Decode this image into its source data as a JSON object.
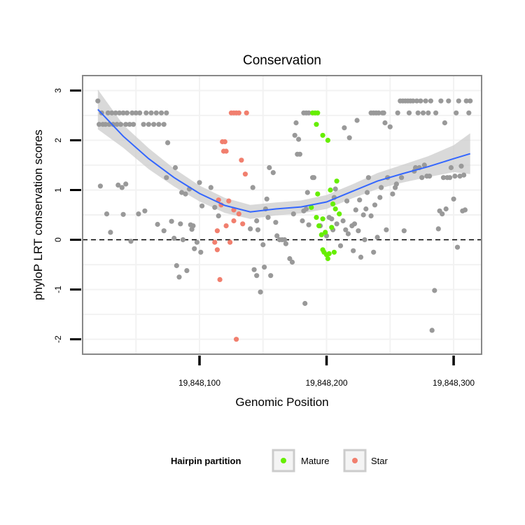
{
  "chart_data": {
    "type": "scatter",
    "title": "Conservation",
    "xlabel": "Genomic Position",
    "ylabel": "phyloP LRT conservation scores",
    "xlim": [
      19848008,
      19848322
    ],
    "ylim": [
      -2.3,
      3.3
    ],
    "x_ticks": [
      19848100,
      19848200,
      19848300
    ],
    "x_tick_labels": [
      "19,848,100",
      "19,848,200",
      "19,848,300"
    ],
    "y_ticks": [
      -2,
      -1,
      0,
      1,
      2,
      3
    ],
    "y_tick_labels": [
      "-2",
      "-1",
      "0",
      "1",
      "2",
      "3"
    ],
    "reference_line": {
      "y": 0,
      "style": "dashed",
      "color": "#000000"
    },
    "colors": {
      "other": "#999999",
      "mature": "#66ee00",
      "star": "#f17f6e",
      "smooth": "#3366ff",
      "band": "#cccccc",
      "panel_border": "#888888",
      "grid": "#f2f2f2"
    },
    "legend": {
      "title": "Hairpin partition",
      "position": "bottom",
      "entries": [
        {
          "label": "Mature",
          "color": "#66ee00"
        },
        {
          "label": "Star",
          "color": "#f17f6e"
        }
      ]
    },
    "smooth": {
      "x": [
        19848020,
        19848040,
        19848060,
        19848080,
        19848100,
        19848120,
        19848140,
        19848160,
        19848180,
        19848200,
        19848220,
        19848240,
        19848260,
        19848280,
        19848300,
        19848313
      ],
      "y": [
        2.62,
        2.08,
        1.63,
        1.25,
        0.93,
        0.69,
        0.56,
        0.62,
        0.66,
        0.76,
        0.97,
        1.18,
        1.33,
        1.47,
        1.63,
        1.73
      ],
      "lower": [
        2.22,
        1.85,
        1.42,
        1.07,
        0.77,
        0.54,
        0.42,
        0.49,
        0.53,
        0.62,
        0.83,
        1.02,
        1.15,
        1.26,
        1.36,
        1.32
      ],
      "upper": [
        3.02,
        2.31,
        1.84,
        1.43,
        1.09,
        0.84,
        0.7,
        0.75,
        0.79,
        0.9,
        1.11,
        1.34,
        1.51,
        1.68,
        1.9,
        2.14
      ]
    },
    "series": [
      {
        "name": "Other",
        "color": "#999999",
        "points": [
          [
            19848020,
            2.79
          ],
          [
            19848021,
            2.32
          ],
          [
            19848023,
            2.55
          ],
          [
            19848024,
            2.32
          ],
          [
            19848026,
            2.32
          ],
          [
            19848028,
            2.55
          ],
          [
            19848029,
            2.32
          ],
          [
            19848031,
            2.55
          ],
          [
            19848032,
            2.32
          ],
          [
            19848034,
            2.55
          ],
          [
            19848035,
            2.32
          ],
          [
            19848037,
            2.55
          ],
          [
            19848038,
            2.32
          ],
          [
            19848040,
            2.55
          ],
          [
            19848042,
            2.32
          ],
          [
            19848043,
            2.55
          ],
          [
            19848045,
            2.32
          ],
          [
            19848047,
            2.55
          ],
          [
            19848048,
            2.32
          ],
          [
            19848050,
            2.55
          ],
          [
            19848053,
            2.55
          ],
          [
            19848056,
            2.32
          ],
          [
            19848058,
            2.55
          ],
          [
            19848060,
            2.32
          ],
          [
            19848062,
            2.55
          ],
          [
            19848064,
            2.32
          ],
          [
            19848066,
            2.55
          ],
          [
            19848068,
            2.32
          ],
          [
            19848070,
            2.55
          ],
          [
            19848072,
            2.32
          ],
          [
            19848074,
            2.55
          ],
          [
            19848022,
            1.08
          ],
          [
            19848027,
            0.52
          ],
          [
            19848030,
            0.15
          ],
          [
            19848036,
            1.1
          ],
          [
            19848039,
            1.05
          ],
          [
            19848040,
            0.51
          ],
          [
            19848042,
            1.12
          ],
          [
            19848046,
            -0.03
          ],
          [
            19848052,
            0.52
          ],
          [
            19848057,
            0.58
          ],
          [
            19848067,
            0.31
          ],
          [
            19848072,
            0.18
          ],
          [
            19848074,
            1.25
          ],
          [
            19848078,
            0.37
          ],
          [
            19848080,
            0.03
          ],
          [
            19848081,
            1.45
          ],
          [
            19848082,
            -0.52
          ],
          [
            19848084,
            -0.75
          ],
          [
            19848085,
            0.32
          ],
          [
            19848086,
            0.95
          ],
          [
            19848087,
            0.0
          ],
          [
            19848089,
            0.92
          ],
          [
            19848090,
            -0.62
          ],
          [
            19848092,
            1.02
          ],
          [
            19848093,
            0.3
          ],
          [
            19848094,
            0.21
          ],
          [
            19848095,
            0.28
          ],
          [
            19848096,
            -0.18
          ],
          [
            19848098,
            -0.05
          ],
          [
            19848100,
            1.15
          ],
          [
            19848101,
            -0.25
          ],
          [
            19848102,
            0.68
          ],
          [
            19848075,
            1.95
          ],
          [
            19848109,
            1.05
          ],
          [
            19848112,
            0.65
          ],
          [
            19848115,
            0.48
          ],
          [
            19848140,
            0.22
          ],
          [
            19848145,
            0.38
          ],
          [
            19848150,
            -0.1
          ],
          [
            19848151,
            -0.55
          ],
          [
            19848153,
            0.82
          ],
          [
            19848154,
            0.45
          ],
          [
            19848156,
            -0.72
          ],
          [
            19848148,
            -1.05
          ],
          [
            19848145,
            -0.72
          ],
          [
            19848143,
            -0.6
          ],
          [
            19848142,
            1.05
          ],
          [
            19848146,
            0.2
          ],
          [
            19848152,
            0.62
          ],
          [
            19848155,
            1.45
          ],
          [
            19848158,
            1.35
          ],
          [
            19848160,
            0.35
          ],
          [
            19848161,
            0.08
          ],
          [
            19848163,
            0.0
          ],
          [
            19848165,
            0.0
          ],
          [
            19848167,
            0.0
          ],
          [
            19848168,
            -0.08
          ],
          [
            19848171,
            -0.38
          ],
          [
            19848173,
            -0.45
          ],
          [
            19848174,
            0.52
          ],
          [
            19848175,
            2.1
          ],
          [
            19848176,
            2.35
          ],
          [
            19848177,
            1.72
          ],
          [
            19848178,
            2.02
          ],
          [
            19848179,
            1.72
          ],
          [
            19848181,
            0.38
          ],
          [
            19848182,
            0.58
          ],
          [
            19848183,
            -1.28
          ],
          [
            19848184,
            0.62
          ],
          [
            19848186,
            0.3
          ],
          [
            19848189,
            1.25
          ],
          [
            19848190,
            1.25
          ],
          [
            19848185,
            0.95
          ],
          [
            19848182,
            2.55
          ],
          [
            19848184,
            2.55
          ],
          [
            19848186,
            2.55
          ],
          [
            19848195,
            0.28
          ],
          [
            19848200,
            0.08
          ],
          [
            19848202,
            0.45
          ],
          [
            19848204,
            0.42
          ],
          [
            19848205,
            0.2
          ],
          [
            19848206,
            0.85
          ],
          [
            19848207,
            1.02
          ],
          [
            19848208,
            0.32
          ],
          [
            19848211,
            -0.12
          ],
          [
            19848213,
            0.38
          ],
          [
            19848214,
            2.25
          ],
          [
            19848215,
            0.2
          ],
          [
            19848216,
            0.78
          ],
          [
            19848217,
            0.12
          ],
          [
            19848218,
            2.05
          ],
          [
            19848220,
            0.28
          ],
          [
            19848221,
            -0.22
          ],
          [
            19848222,
            0.32
          ],
          [
            19848223,
            0.6
          ],
          [
            19848224,
            2.4
          ],
          [
            19848225,
            0.18
          ],
          [
            19848226,
            0.8
          ],
          [
            19848227,
            -0.35
          ],
          [
            19848229,
            0.5
          ],
          [
            19848230,
            0.0
          ],
          [
            19848231,
            0.62
          ],
          [
            19848232,
            0.95
          ],
          [
            19848233,
            1.25
          ],
          [
            19848235,
            0.48
          ],
          [
            19848237,
            -0.25
          ],
          [
            19848238,
            0.7
          ],
          [
            19848240,
            0.05
          ],
          [
            19848242,
            0.85
          ],
          [
            19848243,
            1.05
          ],
          [
            19848244,
            2.55
          ],
          [
            19848246,
            2.35
          ],
          [
            19848247,
            0.2
          ],
          [
            19848248,
            1.25
          ],
          [
            19848235,
            2.55
          ],
          [
            19848237,
            2.55
          ],
          [
            19848239,
            2.55
          ],
          [
            19848241,
            2.55
          ],
          [
            19848245,
            2.55
          ],
          [
            19848250,
            2.27
          ],
          [
            19848252,
            0.92
          ],
          [
            19848254,
            1.05
          ],
          [
            19848255,
            1.12
          ],
          [
            19848256,
            2.55
          ],
          [
            19848258,
            2.79
          ],
          [
            19848259,
            1.25
          ],
          [
            19848260,
            2.79
          ],
          [
            19848261,
            0.18
          ],
          [
            19848262,
            2.79
          ],
          [
            19848264,
            2.79
          ],
          [
            19848265,
            2.55
          ],
          [
            19848266,
            2.79
          ],
          [
            19848268,
            2.79
          ],
          [
            19848269,
            1.38
          ],
          [
            19848270,
            1.45
          ],
          [
            19848271,
            2.79
          ],
          [
            19848272,
            2.55
          ],
          [
            19848273,
            1.45
          ],
          [
            19848274,
            2.79
          ],
          [
            19848275,
            1.25
          ],
          [
            19848276,
            2.55
          ],
          [
            19848277,
            1.5
          ],
          [
            19848278,
            2.79
          ],
          [
            19848279,
            1.28
          ],
          [
            19848280,
            2.55
          ],
          [
            19848281,
            1.28
          ],
          [
            19848282,
            2.79
          ],
          [
            19848283,
            -1.82
          ],
          [
            19848285,
            -1.02
          ],
          [
            19848286,
            2.55
          ],
          [
            19848288,
            0.22
          ],
          [
            19848289,
            0.58
          ],
          [
            19848290,
            2.79
          ],
          [
            19848291,
            0.52
          ],
          [
            19848292,
            1.25
          ],
          [
            19848293,
            2.35
          ],
          [
            19848294,
            0.62
          ],
          [
            19848295,
            1.25
          ],
          [
            19848296,
            2.79
          ],
          [
            19848297,
            1.25
          ],
          [
            19848298,
            1.45
          ],
          [
            19848300,
            0.82
          ],
          [
            19848301,
            1.28
          ],
          [
            19848302,
            2.55
          ],
          [
            19848303,
            -0.15
          ],
          [
            19848304,
            2.79
          ],
          [
            19848305,
            1.28
          ],
          [
            19848306,
            1.48
          ],
          [
            19848307,
            0.58
          ],
          [
            19848308,
            1.3
          ],
          [
            19848309,
            0.6
          ],
          [
            19848310,
            2.79
          ],
          [
            19848312,
            2.55
          ],
          [
            19848313,
            2.79
          ]
        ]
      },
      {
        "name": "Mature",
        "color": "#66ee00",
        "points": [
          [
            19848189,
            2.55
          ],
          [
            19848191,
            2.55
          ],
          [
            19848193,
            2.55
          ],
          [
            19848192,
            2.32
          ],
          [
            19848197,
            2.1
          ],
          [
            19848201,
            2.0
          ],
          [
            19848193,
            0.92
          ],
          [
            19848203,
            1.0
          ],
          [
            19848208,
            1.18
          ],
          [
            19848205,
            0.72
          ],
          [
            19848207,
            0.62
          ],
          [
            19848210,
            0.52
          ],
          [
            19848188,
            0.65
          ],
          [
            19848192,
            0.45
          ],
          [
            19848194,
            0.28
          ],
          [
            19848197,
            0.42
          ],
          [
            19848196,
            0.1
          ],
          [
            19848199,
            0.15
          ],
          [
            19848204,
            0.25
          ],
          [
            19848197,
            -0.2
          ],
          [
            19848198,
            -0.25
          ],
          [
            19848200,
            -0.3
          ],
          [
            19848202,
            -0.28
          ],
          [
            19848206,
            -0.25
          ],
          [
            19848201,
            -0.38
          ]
        ]
      },
      {
        "name": "Star",
        "color": "#f17f6e",
        "points": [
          [
            19848125,
            2.55
          ],
          [
            19848127,
            2.55
          ],
          [
            19848129,
            2.55
          ],
          [
            19848131,
            2.55
          ],
          [
            19848137,
            2.55
          ],
          [
            19848118,
            1.97
          ],
          [
            19848120,
            1.97
          ],
          [
            19848119,
            1.78
          ],
          [
            19848121,
            1.78
          ],
          [
            19848133,
            1.6
          ],
          [
            19848136,
            1.32
          ],
          [
            19848115,
            0.8
          ],
          [
            19848117,
            0.7
          ],
          [
            19848123,
            0.78
          ],
          [
            19848127,
            0.6
          ],
          [
            19848131,
            0.52
          ],
          [
            19848114,
            0.18
          ],
          [
            19848121,
            0.28
          ],
          [
            19848127,
            0.38
          ],
          [
            19848134,
            0.32
          ],
          [
            19848112,
            -0.05
          ],
          [
            19848124,
            -0.05
          ],
          [
            19848114,
            -0.2
          ],
          [
            19848116,
            -0.8
          ],
          [
            19848129,
            -2.0
          ]
        ]
      }
    ]
  }
}
